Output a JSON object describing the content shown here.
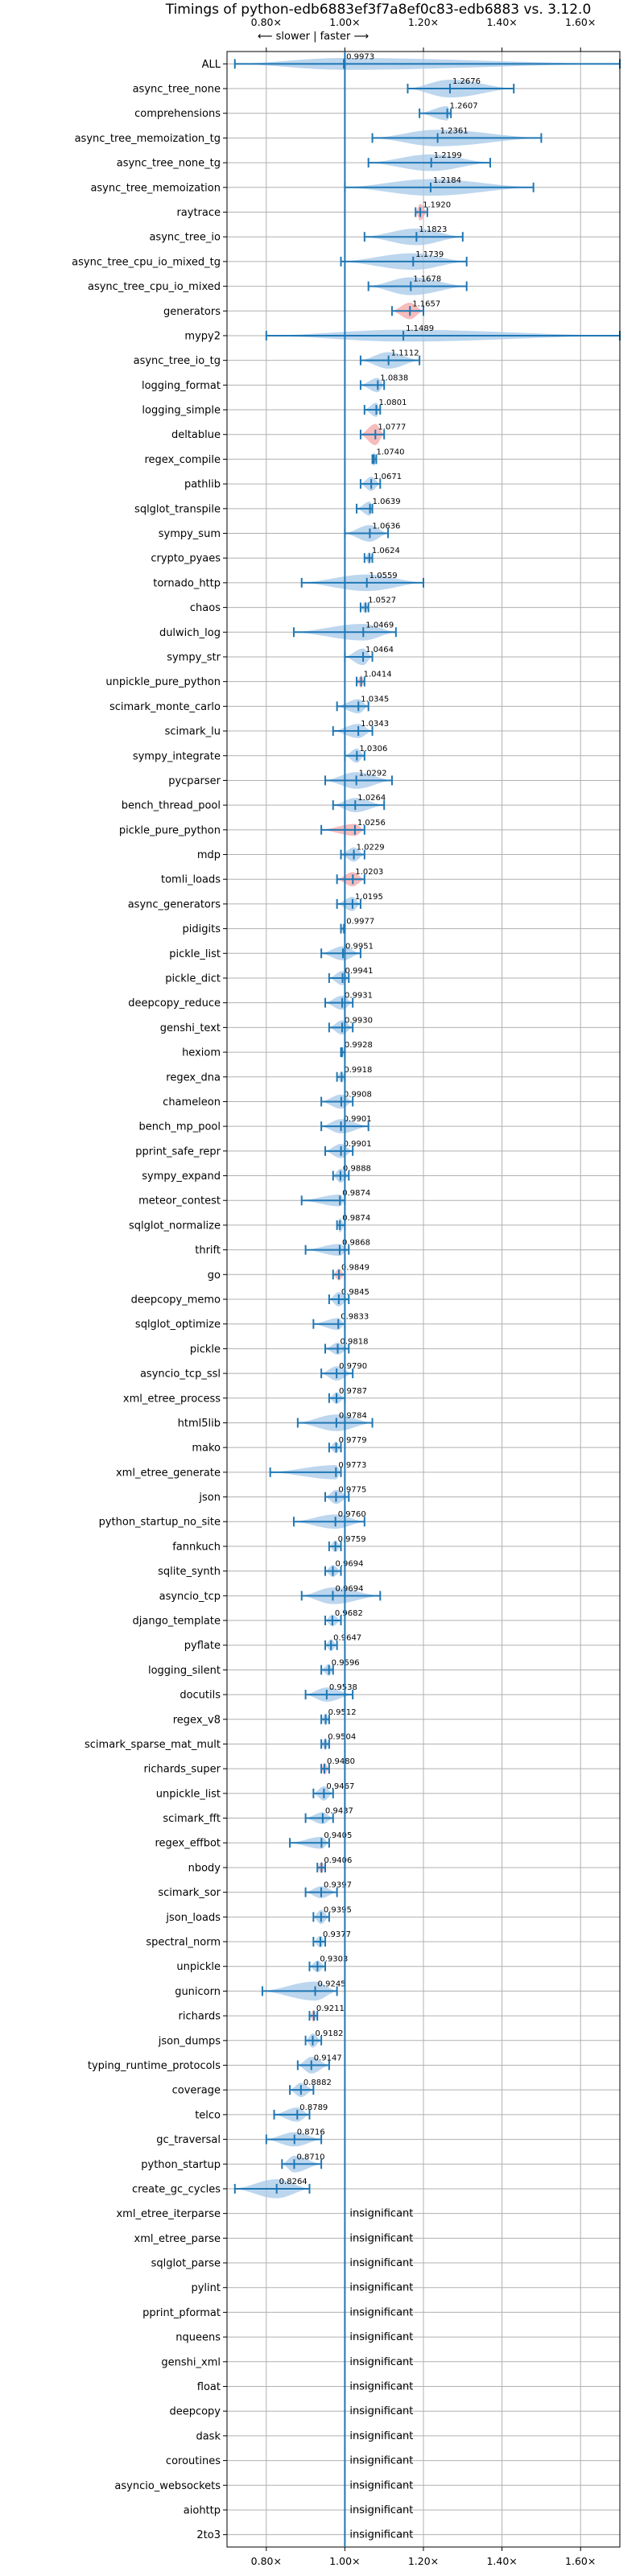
{
  "chart_data": {
    "type": "violin",
    "title": "Timings of python-edb6883ef3f7a8ef0c83-edb6883 vs. 3.12.0",
    "direction_label": "⟵ slower | faster ⟶",
    "xlim": [
      0.7,
      1.7
    ],
    "xticks": [
      0.8,
      1.0,
      1.2,
      1.4,
      1.6
    ],
    "xtick_labels": [
      "0.80×",
      "1.00×",
      "1.20×",
      "1.40×",
      "1.60×"
    ],
    "reference_x": 1.0,
    "grid": true,
    "colors": {
      "violin": "#a6c8e8",
      "violin_flagged": "#f4a6a6",
      "line": "#1f77b4",
      "flag": "#e06666"
    },
    "insignificant_text": "insignificant",
    "benchmarks": [
      {
        "name": "ALL",
        "median": 0.9973,
        "lo": 0.72,
        "hi": 1.7,
        "kde": 0.5,
        "show_label": true
      },
      {
        "name": "async_tree_none",
        "median": 1.2676,
        "lo": 1.16,
        "hi": 1.43,
        "kde": 0.75
      },
      {
        "name": "comprehensions",
        "median": 1.2607,
        "lo": 1.19,
        "hi": 1.27,
        "kde": 0.6
      },
      {
        "name": "async_tree_memoization_tg",
        "median": 1.2361,
        "lo": 1.07,
        "hi": 1.5,
        "kde": 0.7
      },
      {
        "name": "async_tree_none_tg",
        "median": 1.2199,
        "lo": 1.06,
        "hi": 1.37,
        "kde": 0.7
      },
      {
        "name": "async_tree_memoization",
        "median": 1.2184,
        "lo": 1.0,
        "hi": 1.48,
        "kde": 0.7
      },
      {
        "name": "raytrace",
        "median": 1.192,
        "lo": 1.18,
        "hi": 1.21,
        "kde": 0.7,
        "flag": true
      },
      {
        "name": "async_tree_io",
        "median": 1.1823,
        "lo": 1.05,
        "hi": 1.3,
        "kde": 0.7
      },
      {
        "name": "async_tree_cpu_io_mixed_tg",
        "median": 1.1739,
        "lo": 0.99,
        "hi": 1.31,
        "kde": 0.7
      },
      {
        "name": "async_tree_cpu_io_mixed",
        "median": 1.1678,
        "lo": 1.06,
        "hi": 1.31,
        "kde": 0.75
      },
      {
        "name": "generators",
        "median": 1.1657,
        "lo": 1.12,
        "hi": 1.2,
        "kde": 0.7,
        "flag": true
      },
      {
        "name": "mypy2",
        "median": 1.1489,
        "lo": 0.8,
        "hi": 1.7,
        "kde": 0.5
      },
      {
        "name": "async_tree_io_tg",
        "median": 1.1112,
        "lo": 1.04,
        "hi": 1.19,
        "kde": 0.7
      },
      {
        "name": "logging_format",
        "median": 1.0838,
        "lo": 1.04,
        "hi": 1.1,
        "kde": 0.6
      },
      {
        "name": "logging_simple",
        "median": 1.0801,
        "lo": 1.05,
        "hi": 1.09,
        "kde": 0.6
      },
      {
        "name": "deltablue",
        "median": 1.0777,
        "lo": 1.04,
        "hi": 1.1,
        "kde": 0.9,
        "flag": true
      },
      {
        "name": "regex_compile",
        "median": 1.074,
        "lo": 1.07,
        "hi": 1.08,
        "kde": 0.6
      },
      {
        "name": "pathlib",
        "median": 1.0671,
        "lo": 1.04,
        "hi": 1.09,
        "kde": 0.6
      },
      {
        "name": "sqlglot_transpile",
        "median": 1.0639,
        "lo": 1.03,
        "hi": 1.07,
        "kde": 0.6
      },
      {
        "name": "sympy_sum",
        "median": 1.0636,
        "lo": 1.0,
        "hi": 1.11,
        "kde": 0.7
      },
      {
        "name": "crypto_pyaes",
        "median": 1.0624,
        "lo": 1.05,
        "hi": 1.07,
        "kde": 0.5
      },
      {
        "name": "tornado_http",
        "median": 1.0559,
        "lo": 0.89,
        "hi": 1.2,
        "kde": 0.7
      },
      {
        "name": "chaos",
        "median": 1.0527,
        "lo": 1.04,
        "hi": 1.06,
        "kde": 0.5
      },
      {
        "name": "dulwich_log",
        "median": 1.0469,
        "lo": 0.87,
        "hi": 1.13,
        "kde": 0.7
      },
      {
        "name": "sympy_str",
        "median": 1.0464,
        "lo": 1.0,
        "hi": 1.07,
        "kde": 0.7
      },
      {
        "name": "unpickle_pure_python",
        "median": 1.0414,
        "lo": 1.03,
        "hi": 1.05,
        "kde": 0.5,
        "flag": true
      },
      {
        "name": "scimark_monte_carlo",
        "median": 1.0345,
        "lo": 0.98,
        "hi": 1.06,
        "kde": 0.6
      },
      {
        "name": "scimark_lu",
        "median": 1.0343,
        "lo": 0.97,
        "hi": 1.07,
        "kde": 0.6
      },
      {
        "name": "sympy_integrate",
        "median": 1.0306,
        "lo": 1.0,
        "hi": 1.05,
        "kde": 0.6
      },
      {
        "name": "pycparser",
        "median": 1.0292,
        "lo": 0.95,
        "hi": 1.12,
        "kde": 0.7
      },
      {
        "name": "bench_thread_pool",
        "median": 1.0264,
        "lo": 0.97,
        "hi": 1.1,
        "kde": 0.6
      },
      {
        "name": "pickle_pure_python",
        "median": 1.0256,
        "lo": 0.94,
        "hi": 1.05,
        "kde": 0.5,
        "flag": true
      },
      {
        "name": "mdp",
        "median": 1.0229,
        "lo": 0.99,
        "hi": 1.05,
        "kde": 0.6
      },
      {
        "name": "tomli_loads",
        "median": 1.0203,
        "lo": 0.98,
        "hi": 1.05,
        "kde": 0.6,
        "flag": true
      },
      {
        "name": "async_generators",
        "median": 1.0195,
        "lo": 0.98,
        "hi": 1.04,
        "kde": 0.6
      },
      {
        "name": "pidigits",
        "median": 0.9977,
        "lo": 0.99,
        "hi": 1.0,
        "kde": 0.4
      },
      {
        "name": "pickle_list",
        "median": 0.9951,
        "lo": 0.94,
        "hi": 1.04,
        "kde": 0.6
      },
      {
        "name": "pickle_dict",
        "median": 0.9941,
        "lo": 0.96,
        "hi": 1.01,
        "kde": 0.6
      },
      {
        "name": "deepcopy_reduce",
        "median": 0.9931,
        "lo": 0.95,
        "hi": 1.02,
        "kde": 0.6
      },
      {
        "name": "genshi_text",
        "median": 0.993,
        "lo": 0.96,
        "hi": 1.02,
        "kde": 0.6
      },
      {
        "name": "hexiom",
        "median": 0.9928,
        "lo": 0.99,
        "hi": 1.0,
        "kde": 0.5
      },
      {
        "name": "regex_dna",
        "median": 0.9918,
        "lo": 0.98,
        "hi": 1.0,
        "kde": 0.5
      },
      {
        "name": "chameleon",
        "median": 0.9908,
        "lo": 0.94,
        "hi": 1.02,
        "kde": 0.6
      },
      {
        "name": "bench_mp_pool",
        "median": 0.9901,
        "lo": 0.94,
        "hi": 1.06,
        "kde": 0.6
      },
      {
        "name": "pprint_safe_repr",
        "median": 0.9901,
        "lo": 0.95,
        "hi": 1.02,
        "kde": 0.6
      },
      {
        "name": "sympy_expand",
        "median": 0.9888,
        "lo": 0.97,
        "hi": 1.01,
        "kde": 0.6
      },
      {
        "name": "meteor_contest",
        "median": 0.9874,
        "lo": 0.89,
        "hi": 1.0,
        "kde": 0.5
      },
      {
        "name": "sqlglot_normalize",
        "median": 0.9874,
        "lo": 0.98,
        "hi": 1.0,
        "kde": 0.6
      },
      {
        "name": "thrift",
        "median": 0.9868,
        "lo": 0.9,
        "hi": 1.01,
        "kde": 0.5
      },
      {
        "name": "go",
        "median": 0.9849,
        "lo": 0.97,
        "hi": 1.0,
        "kde": 0.5,
        "flag": true
      },
      {
        "name": "deepcopy_memo",
        "median": 0.9845,
        "lo": 0.96,
        "hi": 1.01,
        "kde": 0.6
      },
      {
        "name": "sqlglot_optimize",
        "median": 0.9833,
        "lo": 0.92,
        "hi": 1.0,
        "kde": 0.5
      },
      {
        "name": "pickle",
        "median": 0.9818,
        "lo": 0.95,
        "hi": 1.01,
        "kde": 0.5
      },
      {
        "name": "asyncio_tcp_ssl",
        "median": 0.979,
        "lo": 0.94,
        "hi": 1.02,
        "kde": 0.6
      },
      {
        "name": "xml_etree_process",
        "median": 0.9787,
        "lo": 0.96,
        "hi": 1.0,
        "kde": 0.5
      },
      {
        "name": "html5lib",
        "median": 0.9784,
        "lo": 0.88,
        "hi": 1.07,
        "kde": 0.7
      },
      {
        "name": "mako",
        "median": 0.9779,
        "lo": 0.96,
        "hi": 0.99,
        "kde": 0.5
      },
      {
        "name": "xml_etree_generate",
        "median": 0.9773,
        "lo": 0.81,
        "hi": 0.99,
        "kde": 0.6
      },
      {
        "name": "json",
        "median": 0.9775,
        "lo": 0.95,
        "hi": 1.01,
        "kde": 0.6
      },
      {
        "name": "python_startup_no_site",
        "median": 0.976,
        "lo": 0.87,
        "hi": 1.05,
        "kde": 0.6
      },
      {
        "name": "fannkuch",
        "median": 0.9759,
        "lo": 0.96,
        "hi": 0.99,
        "kde": 0.5
      },
      {
        "name": "sqlite_synth",
        "median": 0.9694,
        "lo": 0.95,
        "hi": 0.99,
        "kde": 0.5
      },
      {
        "name": "asyncio_tcp",
        "median": 0.9694,
        "lo": 0.89,
        "hi": 1.09,
        "kde": 0.7
      },
      {
        "name": "django_template",
        "median": 0.9682,
        "lo": 0.95,
        "hi": 0.99,
        "kde": 0.5
      },
      {
        "name": "pyflate",
        "median": 0.9647,
        "lo": 0.95,
        "hi": 0.98,
        "kde": 0.5
      },
      {
        "name": "logging_silent",
        "median": 0.9596,
        "lo": 0.94,
        "hi": 0.97,
        "kde": 0.5
      },
      {
        "name": "docutils",
        "median": 0.9538,
        "lo": 0.9,
        "hi": 1.02,
        "kde": 0.6
      },
      {
        "name": "regex_v8",
        "median": 0.9512,
        "lo": 0.94,
        "hi": 0.96,
        "kde": 0.5
      },
      {
        "name": "scimark_sparse_mat_mult",
        "median": 0.9504,
        "lo": 0.94,
        "hi": 0.96,
        "kde": 0.5
      },
      {
        "name": "richards_super",
        "median": 0.948,
        "lo": 0.94,
        "hi": 0.96,
        "kde": 0.5,
        "flag": true
      },
      {
        "name": "unpickle_list",
        "median": 0.9467,
        "lo": 0.92,
        "hi": 0.97,
        "kde": 0.6
      },
      {
        "name": "scimark_fft",
        "median": 0.9437,
        "lo": 0.9,
        "hi": 0.97,
        "kde": 0.5
      },
      {
        "name": "regex_effbot",
        "median": 0.9405,
        "lo": 0.86,
        "hi": 0.96,
        "kde": 0.5
      },
      {
        "name": "nbody",
        "median": 0.9406,
        "lo": 0.93,
        "hi": 0.95,
        "kde": 0.5,
        "flag": true
      },
      {
        "name": "scimark_sor",
        "median": 0.9397,
        "lo": 0.9,
        "hi": 0.98,
        "kde": 0.5
      },
      {
        "name": "json_loads",
        "median": 0.9395,
        "lo": 0.92,
        "hi": 0.96,
        "kde": 0.6
      },
      {
        "name": "spectral_norm",
        "median": 0.9377,
        "lo": 0.92,
        "hi": 0.95,
        "kde": 0.5
      },
      {
        "name": "unpickle",
        "median": 0.9303,
        "lo": 0.91,
        "hi": 0.95,
        "kde": 0.5
      },
      {
        "name": "gunicorn",
        "median": 0.9245,
        "lo": 0.79,
        "hi": 0.98,
        "kde": 0.8
      },
      {
        "name": "richards",
        "median": 0.9211,
        "lo": 0.91,
        "hi": 0.93,
        "kde": 0.5,
        "flag": true
      },
      {
        "name": "json_dumps",
        "median": 0.9182,
        "lo": 0.9,
        "hi": 0.94,
        "kde": 0.6
      },
      {
        "name": "typing_runtime_protocols",
        "median": 0.9147,
        "lo": 0.88,
        "hi": 0.96,
        "kde": 0.7
      },
      {
        "name": "coverage",
        "median": 0.8882,
        "lo": 0.86,
        "hi": 0.92,
        "kde": 0.6
      },
      {
        "name": "telco",
        "median": 0.8789,
        "lo": 0.82,
        "hi": 0.91,
        "kde": 0.6
      },
      {
        "name": "gc_traversal",
        "median": 0.8716,
        "lo": 0.8,
        "hi": 0.94,
        "kde": 0.6
      },
      {
        "name": "python_startup",
        "median": 0.871,
        "lo": 0.84,
        "hi": 0.94,
        "kde": 0.7
      },
      {
        "name": "create_gc_cycles",
        "median": 0.8264,
        "lo": 0.72,
        "hi": 0.91,
        "kde": 0.8
      },
      {
        "name": "xml_etree_iterparse",
        "insignificant": true
      },
      {
        "name": "xml_etree_parse",
        "insignificant": true
      },
      {
        "name": "sqlglot_parse",
        "insignificant": true
      },
      {
        "name": "pylint",
        "insignificant": true
      },
      {
        "name": "pprint_pformat",
        "insignificant": true
      },
      {
        "name": "nqueens",
        "insignificant": true
      },
      {
        "name": "genshi_xml",
        "insignificant": true
      },
      {
        "name": "float",
        "insignificant": true
      },
      {
        "name": "deepcopy",
        "insignificant": true
      },
      {
        "name": "dask",
        "insignificant": true
      },
      {
        "name": "coroutines",
        "insignificant": true
      },
      {
        "name": "asyncio_websockets",
        "insignificant": true
      },
      {
        "name": "aiohttp",
        "insignificant": true
      },
      {
        "name": "2to3",
        "insignificant": true
      }
    ]
  }
}
